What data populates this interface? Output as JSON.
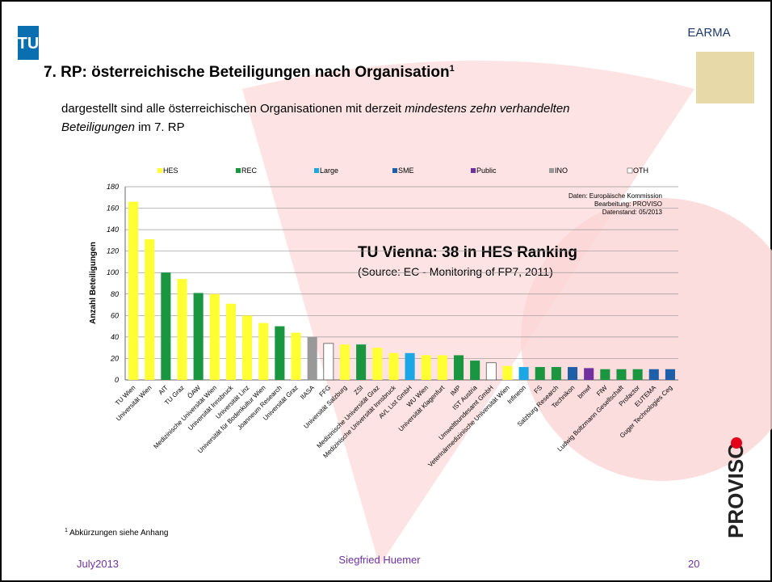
{
  "header": {
    "logo_left": "TU",
    "logo_right": "EARMA",
    "title": "7. RP: österreichische Beteiligungen nach Organisation",
    "title_note": "1",
    "subtitle": [
      "dargestellt sind alle österreichischen Organisationen mit derzeit ",
      "mindestens zehn verhandelten",
      "Beteiligungen",
      " im 7. RP"
    ]
  },
  "chart_data": {
    "type": "bar",
    "y_label": "Anzahl Beteiligungen",
    "categories": [
      "TU Wien",
      "Universität Wien",
      "AIT",
      "TU Graz",
      "ÖAW",
      "Medizinische Universität Wien",
      "Universität Innsbruck",
      "Universität Linz",
      "Universität für Bodenkultur Wien",
      "Joanneum Research",
      "Universität Graz",
      "IIASA",
      "FFG",
      "Universität Salzburg",
      "ZSI",
      "Medizinische Universität Graz",
      "Medizinische Universität Innsbruck",
      "AVL List GmbH",
      "WU Wien",
      "Universität Klagenfurt",
      "IMP",
      "IST Austria",
      "Umweltbundesamt GmbH",
      "Veterinärmedizinische Universität Wien",
      "Infineon",
      "FS",
      "Salzburg Research",
      "Technikon",
      "bmwf",
      "FIW",
      "Ludwig Boltzmann Gesellschaft",
      "Profactor",
      "EUTEMA",
      "Guger Technologies Ceg"
    ],
    "series": [
      {
        "name": "HES",
        "color": "#ffff33",
        "values": [
          166,
          131,
          null,
          94,
          null,
          80,
          71,
          60,
          53,
          null,
          44,
          null,
          null,
          33,
          null,
          30,
          25,
          null,
          23,
          23,
          null,
          null,
          null,
          13,
          null,
          null,
          null,
          null,
          null,
          null,
          null,
          null,
          null,
          null
        ]
      },
      {
        "name": "REC",
        "color": "#1a9641",
        "values": [
          null,
          null,
          100,
          null,
          81,
          null,
          null,
          null,
          null,
          50,
          null,
          null,
          null,
          null,
          33,
          null,
          null,
          null,
          null,
          null,
          23,
          18,
          null,
          null,
          null,
          12,
          12,
          null,
          null,
          10,
          10,
          10,
          null,
          null
        ]
      },
      {
        "name": "Large",
        "color": "#1ba7e6",
        "values": [
          null,
          null,
          null,
          null,
          null,
          null,
          null,
          null,
          null,
          null,
          null,
          null,
          null,
          null,
          null,
          null,
          null,
          25,
          null,
          null,
          null,
          null,
          null,
          null,
          12,
          null,
          null,
          null,
          null,
          null,
          null,
          null,
          null,
          null
        ]
      },
      {
        "name": "SME",
        "color": "#1f5fa8",
        "values": [
          null,
          null,
          null,
          null,
          null,
          null,
          null,
          null,
          null,
          null,
          null,
          null,
          null,
          null,
          null,
          null,
          null,
          null,
          null,
          null,
          null,
          null,
          null,
          null,
          null,
          null,
          null,
          12,
          null,
          null,
          null,
          null,
          10,
          10
        ]
      },
      {
        "name": "Public",
        "color": "#7030a0",
        "values": [
          null,
          null,
          null,
          null,
          null,
          null,
          null,
          null,
          null,
          null,
          null,
          null,
          null,
          null,
          null,
          null,
          null,
          null,
          null,
          null,
          null,
          null,
          null,
          null,
          null,
          null,
          null,
          null,
          11,
          null,
          null,
          null,
          null,
          null
        ]
      },
      {
        "name": "INO",
        "color": "#999999",
        "values": [
          null,
          null,
          null,
          null,
          null,
          null,
          null,
          null,
          null,
          null,
          null,
          40,
          null,
          null,
          null,
          null,
          null,
          null,
          null,
          null,
          null,
          null,
          null,
          null,
          null,
          null,
          null,
          null,
          null,
          null,
          null,
          null,
          null,
          null
        ]
      },
      {
        "name": "OTH",
        "color": "#ffffff",
        "values": [
          null,
          null,
          null,
          null,
          null,
          null,
          null,
          null,
          null,
          null,
          null,
          null,
          34,
          null,
          null,
          null,
          null,
          null,
          null,
          null,
          null,
          null,
          16,
          null,
          null,
          null,
          null,
          null,
          null,
          null,
          null,
          null,
          null,
          null
        ]
      }
    ],
    "ylim": [
      0,
      180
    ],
    "yticks": [
      0,
      20,
      40,
      60,
      80,
      100,
      120,
      140,
      160,
      180
    ],
    "grid": true,
    "annotations": [
      "Daten: Europäische Kommission",
      "Bearbeitung: PROVISO",
      "Datenstand: 05/2013"
    ],
    "callout": {
      "title": "TU Vienna: 38 in HES Ranking",
      "source": "(Source: EC - Monitoring of FP7, 2011)"
    }
  },
  "footnote": {
    "mark": "1",
    "text": " Abkürzungen siehe Anhang"
  },
  "side_logo": "PROVISO",
  "footer": {
    "date": "July2013",
    "author": "Siegfried Huemer",
    "page": "20"
  }
}
